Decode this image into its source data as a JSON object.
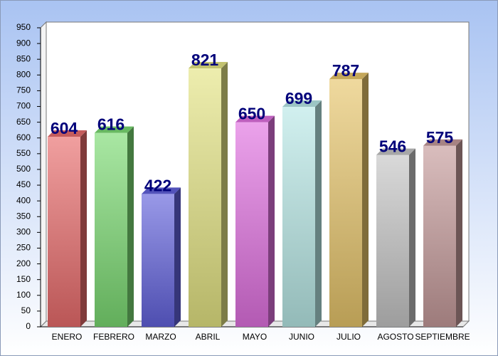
{
  "chart_data": {
    "type": "bar3d",
    "categories": [
      "ENERO",
      "FEBRERO",
      "MARZO",
      "ABRIL",
      "MAYO",
      "JUNIO",
      "JULIO",
      "AGOSTO",
      "SEPTIEMBRE"
    ],
    "values": [
      604,
      616,
      422,
      821,
      650,
      699,
      787,
      546,
      575
    ],
    "colors": [
      "#e86c6c",
      "#7ada72",
      "#6262dc",
      "#e4e482",
      "#e070e0",
      "#b8e8e6",
      "#e6c46a",
      "#c4c4c4",
      "#c49a9a"
    ],
    "label_color": "#00007a",
    "ylim": [
      0,
      950
    ],
    "yticks": [
      0,
      50,
      100,
      150,
      200,
      250,
      300,
      350,
      400,
      450,
      500,
      550,
      600,
      650,
      700,
      750,
      800,
      850,
      900,
      950
    ],
    "grid": false
  }
}
